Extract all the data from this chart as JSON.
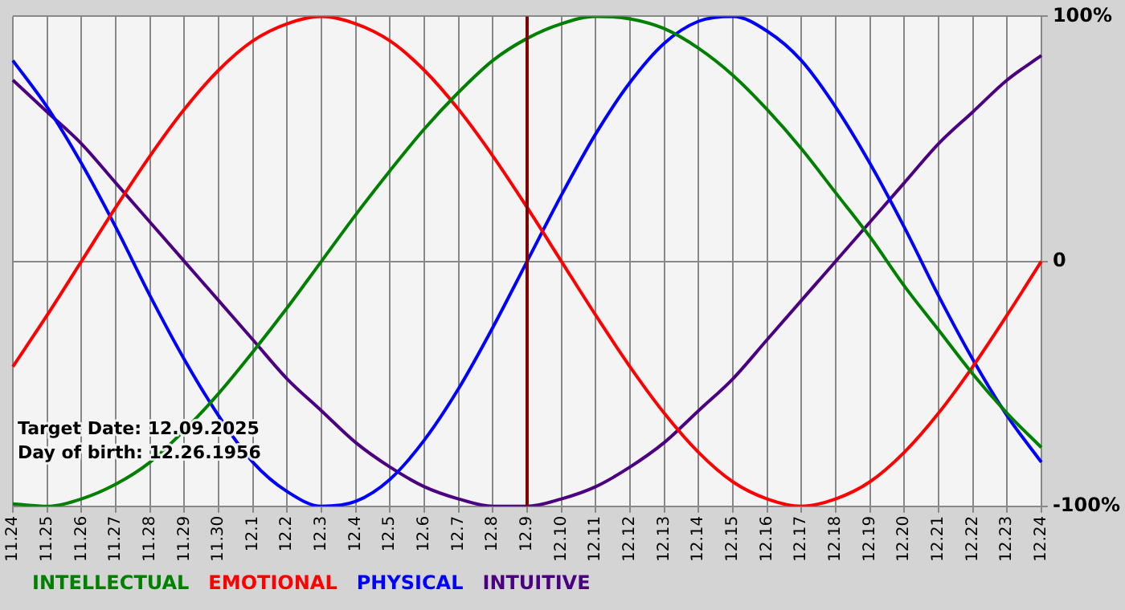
{
  "chart_data": {
    "type": "line",
    "categories": [
      "11.24",
      "11.25",
      "11.26",
      "11.27",
      "11.28",
      "11.29",
      "11.30",
      "12.1",
      "12.2",
      "12.3",
      "12.4",
      "12.5",
      "12.6",
      "12.7",
      "12.8",
      "12.9",
      "12.10",
      "12.11",
      "12.12",
      "12.13",
      "12.14",
      "12.15",
      "12.16",
      "12.17",
      "12.18",
      "12.19",
      "12.20",
      "12.21",
      "12.22",
      "12.23",
      "12.24"
    ],
    "series": [
      {
        "name": "INTELLECTUAL",
        "color": "#008000",
        "values": [
          -99,
          -100,
          -97,
          -91,
          -82,
          -69,
          -54,
          -37,
          -19,
          0,
          19,
          37,
          54,
          69,
          82,
          91,
          97,
          100,
          99,
          95,
          87,
          76,
          62,
          46,
          28,
          10,
          -10,
          -28,
          -46,
          -62,
          -76
        ]
      },
      {
        "name": "EMOTIONAL",
        "color": "#ff0000",
        "values": [
          -43,
          -22,
          0,
          22,
          43,
          62,
          78,
          90,
          97,
          100,
          97,
          90,
          78,
          62,
          43,
          22,
          0,
          -22,
          -43,
          -62,
          -78,
          -90,
          -97,
          -100,
          -97,
          -90,
          -78,
          -62,
          -43,
          -22,
          0
        ]
      },
      {
        "name": "PHYSICAL",
        "color": "#0000ff",
        "values": [
          82,
          63,
          40,
          14,
          -14,
          -40,
          -63,
          -82,
          -94,
          -100,
          -98,
          -89,
          -73,
          -52,
          -27,
          0,
          27,
          52,
          73,
          89,
          98,
          100,
          94,
          82,
          63,
          40,
          14,
          -14,
          -40,
          -63,
          -82
        ]
      },
      {
        "name": "INTUITIVE",
        "color": "#4b0082",
        "values": [
          74,
          61,
          48,
          32,
          16,
          0,
          -16,
          -32,
          -48,
          -61,
          -74,
          -84,
          -92,
          -97,
          -100,
          -100,
          -97,
          -92,
          -84,
          -74,
          -61,
          -48,
          -32,
          -16,
          0,
          16,
          32,
          48,
          61,
          74,
          84
        ]
      }
    ],
    "ylim": [
      -100,
      100
    ],
    "yticks": [
      {
        "value": -100,
        "label": "-100%"
      },
      0,
      {
        "value": 100,
        "label": "100%"
      }
    ],
    "ref_lines": [
      {
        "axis": "x",
        "value": "12.9",
        "color": "#800000"
      }
    ],
    "annotations": [
      "Target Date: 12.09.2025",
      "Day of birth: 12.26.1956"
    ],
    "grid": true,
    "legend": "bottom",
    "marker": "none",
    "line_style": "solid"
  }
}
